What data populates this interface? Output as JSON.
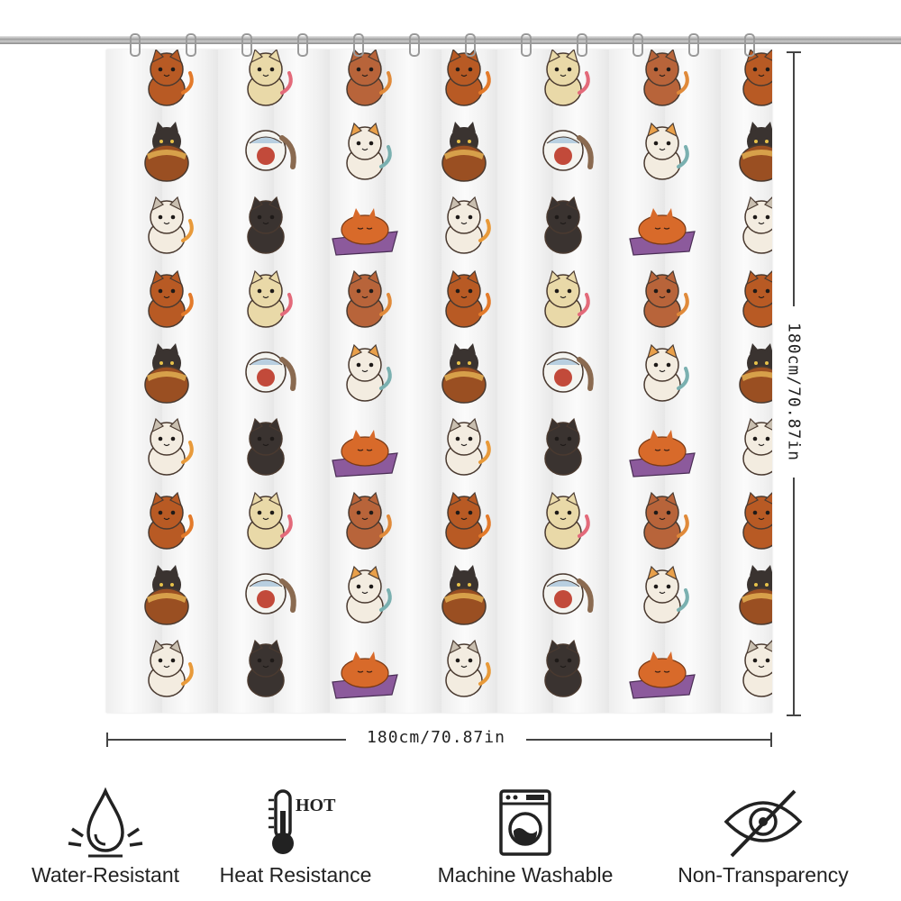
{
  "product": {
    "width_label": "180cm/70.87in",
    "height_label": "180cm/70.87in"
  },
  "features": [
    {
      "label": "Water-Resistant",
      "icon": "water-drop-icon"
    },
    {
      "label": "Heat Resistance",
      "icon": "thermometer-icon",
      "icon_text": "HOT"
    },
    {
      "label": "Machine Washable",
      "icon": "washing-machine-icon"
    },
    {
      "label": "Non-Transparency",
      "icon": "eye-slash-icon"
    }
  ],
  "pattern": {
    "motif": "cartoon cats",
    "colors": [
      "#b85a24",
      "#3a3330",
      "#e9d9a8",
      "#d86a2a",
      "#8c5a9c",
      "#f3ece0"
    ]
  }
}
